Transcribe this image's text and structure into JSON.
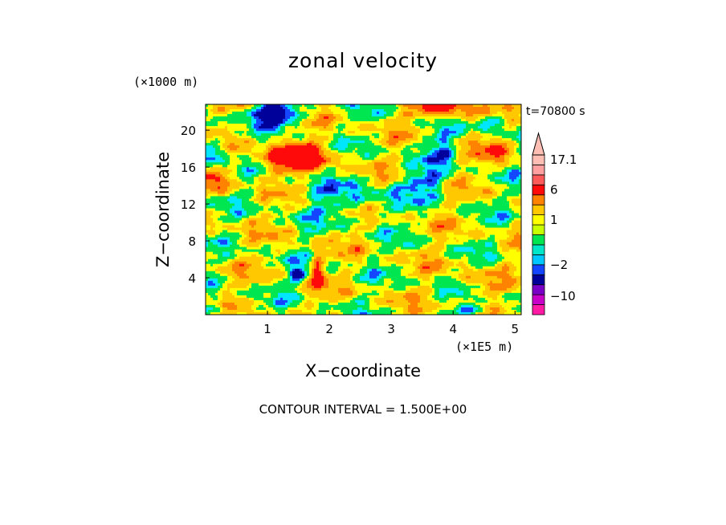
{
  "chart_data": {
    "type": "heatmap",
    "title": "zonal velocity",
    "xlabel": "X−coordinate",
    "ylabel": "Z−coordinate",
    "x_unit": "(×1E5 m)",
    "y_unit": "(×1000 m)",
    "time_label": "t=70800 s",
    "footer": "CONTOUR INTERVAL = 1.500E+00",
    "xlim": [
      0,
      5.1
    ],
    "ylim": [
      0,
      22.8
    ],
    "x_ticks": [
      1,
      2,
      3,
      4,
      5
    ],
    "y_ticks": [
      4,
      8,
      12,
      16,
      20
    ],
    "colorbar": {
      "labels": [
        {
          "text": "17.1",
          "value": 17.1
        },
        {
          "text": "6",
          "value": 6
        },
        {
          "text": "1",
          "value": 1
        },
        {
          "text": "−2",
          "value": -2
        },
        {
          "text": "−10",
          "value": -10
        }
      ],
      "bands": [
        {
          "value": -15,
          "color": "#ff1aa6"
        },
        {
          "value": -11,
          "color": "#c800c8"
        },
        {
          "value": -8,
          "color": "#7a00c8"
        },
        {
          "value": -4.5,
          "color": "#00009a"
        },
        {
          "value": -2.5,
          "color": "#1446ff"
        },
        {
          "value": -1.5,
          "color": "#00c8ff"
        },
        {
          "value": -0.7,
          "color": "#00e6c8"
        },
        {
          "value": 0,
          "color": "#00e650"
        },
        {
          "value": 0.5,
          "color": "#c8ff00"
        },
        {
          "value": 1,
          "color": "#ffff00"
        },
        {
          "value": 1.5,
          "color": "#ffc800"
        },
        {
          "value": 3,
          "color": "#ff8200"
        },
        {
          "value": 6,
          "color": "#ff0a0a"
        },
        {
          "value": 10,
          "color": "#ff5a5a"
        },
        {
          "value": 14,
          "color": "#ffa0a0"
        },
        {
          "value": 17.1,
          "color": "#ffbeb4"
        }
      ]
    },
    "field_levels": [
      {
        "value": -3,
        "color": "#00009a"
      },
      {
        "value": -2,
        "color": "#1446ff"
      },
      {
        "value": -1,
        "color": "#00e6ff"
      },
      {
        "value": 0.5,
        "color": "#00e650"
      },
      {
        "value": 1.5,
        "color": "#ffff00"
      },
      {
        "value": 3,
        "color": "#ffc800"
      },
      {
        "value": 4.5,
        "color": "#ff8200"
      },
      {
        "value": 99,
        "color": "#ff0a0a"
      }
    ]
  }
}
